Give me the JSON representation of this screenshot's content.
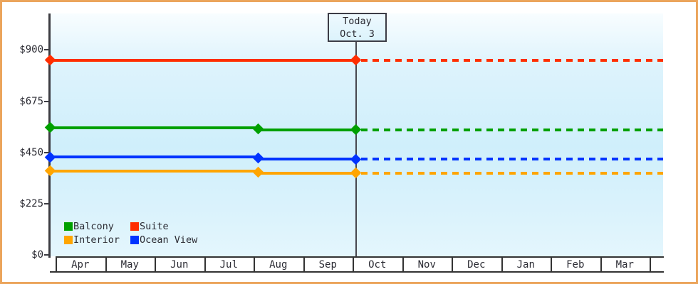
{
  "chart": {
    "today_box": {
      "line1": "Today",
      "line2": "Oct. 3"
    },
    "y_axis": {
      "tick_labels": [
        "$0",
        "$225",
        "$450",
        "$675",
        "$900"
      ],
      "tick_values": [
        0,
        225,
        450,
        675,
        900
      ]
    },
    "x_axis": {
      "months": [
        "Apr",
        "May",
        "Jun",
        "Jul",
        "Aug",
        "Sep",
        "Oct",
        "Nov",
        "Dec",
        "Jan",
        "Feb",
        "Mar"
      ]
    },
    "legend": {
      "items": [
        {
          "label": "Balcony",
          "color": "#00a000"
        },
        {
          "label": "Suite",
          "color": "#ff2e00"
        },
        {
          "label": "Interior",
          "color": "#ffa500"
        },
        {
          "label": "Ocean View",
          "color": "#0033ff"
        }
      ]
    }
  },
  "chart_data": {
    "type": "line",
    "title": "",
    "x_categories": [
      "Apr",
      "May",
      "Jun",
      "Jul",
      "Aug",
      "Sep",
      "Oct",
      "Nov",
      "Dec",
      "Jan",
      "Feb",
      "Mar"
    ],
    "ylim": [
      0,
      900
    ],
    "y_tick_labels": [
      "$0",
      "$225",
      "$450",
      "$675",
      "$900"
    ],
    "grid": false,
    "legend_position": "inside-bottom-left",
    "today": {
      "label": "Today",
      "date_label": "Oct. 3",
      "month": "Oct",
      "day": 3
    },
    "dashed_after_today": true,
    "series": [
      {
        "name": "Suite",
        "color": "#ff2e00",
        "initial_value": 855,
        "change": null,
        "current_value": 855
      },
      {
        "name": "Balcony",
        "color": "#00a000",
        "initial_value": 560,
        "change": {
          "month": "Aug",
          "day": 4,
          "new_value": 550
        },
        "current_value": 550
      },
      {
        "name": "Ocean View",
        "color": "#0033ff",
        "initial_value": 430,
        "change": {
          "month": "Aug",
          "day": 4,
          "new_value": 420
        },
        "current_value": 420
      },
      {
        "name": "Interior",
        "color": "#ffa500",
        "initial_value": 370,
        "change": {
          "month": "Aug",
          "day": 4,
          "new_value": 360
        },
        "current_value": 360
      }
    ]
  }
}
